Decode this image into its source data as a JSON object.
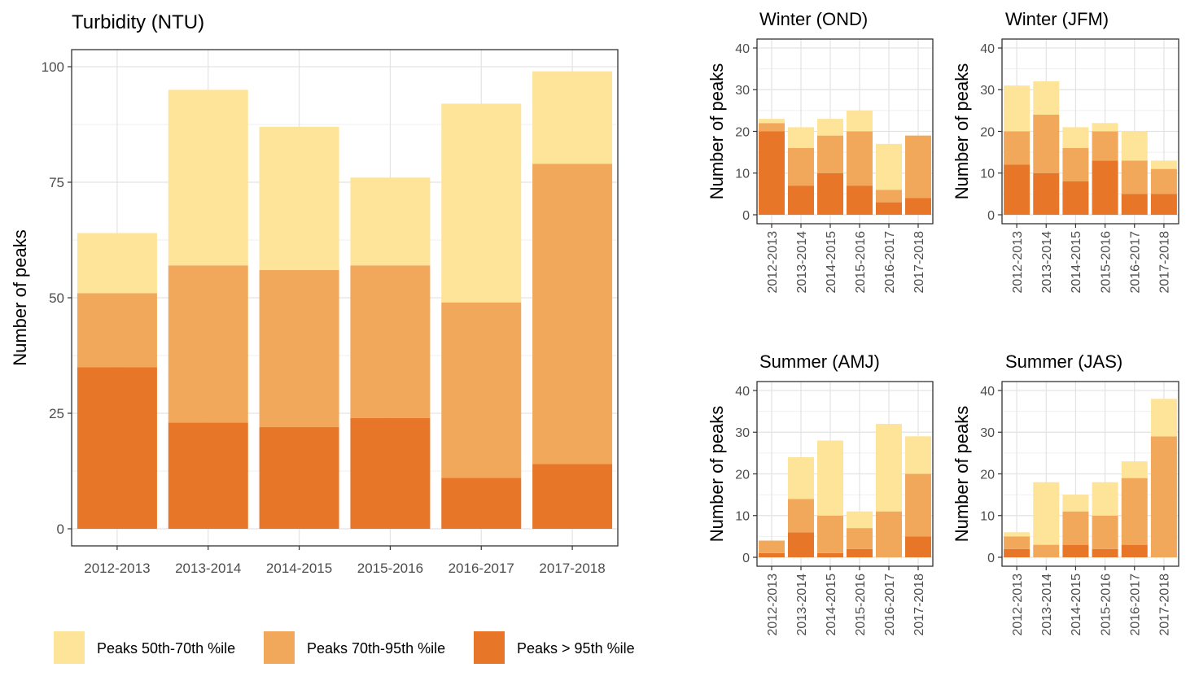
{
  "colors": {
    "low": "#fde498",
    "mid": "#f2a85b",
    "high": "#e87629",
    "grid": "#e3e3e3",
    "axis_text": "#4d4d4d"
  },
  "legend": {
    "items": [
      {
        "key": "low",
        "label": "Peaks 50th-70th %ile"
      },
      {
        "key": "mid",
        "label": "Peaks 70th-95th %ile"
      },
      {
        "key": "high",
        "label": "Peaks > 95th %ile"
      }
    ]
  },
  "chart_data": [
    {
      "id": "main",
      "type": "bar",
      "stacked": true,
      "title": "Turbidity (NTU)",
      "xlabel": "",
      "ylabel": "Number of peaks",
      "ylim": [
        0,
        105
      ],
      "yticks": [
        0,
        25,
        50,
        75,
        100
      ],
      "categories": [
        "2012-2013",
        "2013-2014",
        "2014-2015",
        "2015-2016",
        "2016-2017",
        "2017-2018"
      ],
      "series": [
        {
          "name": "Peaks > 95th %ile",
          "key": "high",
          "values": [
            35,
            23,
            22,
            24,
            11,
            14
          ]
        },
        {
          "name": "Peaks 70th-95th %ile",
          "key": "mid",
          "values": [
            16,
            34,
            34,
            33,
            38,
            65
          ]
        },
        {
          "name": "Peaks 50th-70th %ile",
          "key": "low",
          "values": [
            13,
            38,
            31,
            19,
            43,
            20
          ]
        }
      ],
      "grid": true
    },
    {
      "id": "ond",
      "type": "bar",
      "stacked": true,
      "title": "Winter (OND)",
      "ylabel": "Number of peaks",
      "ylim": [
        0,
        42
      ],
      "yticks": [
        0,
        10,
        20,
        30,
        40
      ],
      "categories": [
        "2012-2013",
        "2013-2014",
        "2014-2015",
        "2015-2016",
        "2016-2017",
        "2017-2018"
      ],
      "series": [
        {
          "name": "Peaks > 95th %ile",
          "key": "high",
          "values": [
            20,
            7,
            10,
            7,
            3,
            4
          ]
        },
        {
          "name": "Peaks 70th-95th %ile",
          "key": "mid",
          "values": [
            2,
            9,
            9,
            13,
            3,
            15
          ]
        },
        {
          "name": "Peaks 50th-70th %ile",
          "key": "low",
          "values": [
            1,
            5,
            4,
            5,
            11,
            0
          ]
        }
      ],
      "grid": true
    },
    {
      "id": "jfm",
      "type": "bar",
      "stacked": true,
      "title": "Winter (JFM)",
      "ylabel": "Number of peaks",
      "ylim": [
        0,
        42
      ],
      "yticks": [
        0,
        10,
        20,
        30,
        40
      ],
      "categories": [
        "2012-2013",
        "2013-2014",
        "2014-2015",
        "2015-2016",
        "2016-2017",
        "2017-2018"
      ],
      "series": [
        {
          "name": "Peaks > 95th %ile",
          "key": "high",
          "values": [
            12,
            10,
            8,
            13,
            5,
            5
          ]
        },
        {
          "name": "Peaks 70th-95th %ile",
          "key": "mid",
          "values": [
            8,
            14,
            8,
            7,
            8,
            6
          ]
        },
        {
          "name": "Peaks 50th-70th %ile",
          "key": "low",
          "values": [
            11,
            8,
            5,
            2,
            7,
            2
          ]
        }
      ],
      "grid": true
    },
    {
      "id": "amj",
      "type": "bar",
      "stacked": true,
      "title": "Summer (AMJ)",
      "ylabel": "Number of peaks",
      "ylim": [
        0,
        42
      ],
      "yticks": [
        0,
        10,
        20,
        30,
        40
      ],
      "categories": [
        "2012-2013",
        "2013-2014",
        "2014-2015",
        "2015-2016",
        "2016-2017",
        "2017-2018"
      ],
      "series": [
        {
          "name": "Peaks > 95th %ile",
          "key": "high",
          "values": [
            1,
            6,
            1,
            2,
            0,
            5
          ]
        },
        {
          "name": "Peaks 70th-95th %ile",
          "key": "mid",
          "values": [
            3,
            8,
            9,
            5,
            11,
            15
          ]
        },
        {
          "name": "Peaks 50th-70th %ile",
          "key": "low",
          "values": [
            0,
            10,
            18,
            4,
            21,
            9
          ]
        }
      ],
      "grid": true
    },
    {
      "id": "jas",
      "type": "bar",
      "stacked": true,
      "title": "Summer (JAS)",
      "ylabel": "Number of peaks",
      "ylim": [
        0,
        42
      ],
      "yticks": [
        0,
        10,
        20,
        30,
        40
      ],
      "categories": [
        "2012-2013",
        "2013-2014",
        "2014-2015",
        "2015-2016",
        "2016-2017",
        "2017-2018"
      ],
      "series": [
        {
          "name": "Peaks > 95th %ile",
          "key": "high",
          "values": [
            2,
            0,
            3,
            2,
            3,
            0
          ]
        },
        {
          "name": "Peaks 70th-95th %ile",
          "key": "mid",
          "values": [
            3,
            3,
            8,
            8,
            16,
            29
          ]
        },
        {
          "name": "Peaks 50th-70th %ile",
          "key": "low",
          "values": [
            1,
            15,
            4,
            8,
            4,
            9
          ]
        }
      ],
      "grid": true
    }
  ]
}
